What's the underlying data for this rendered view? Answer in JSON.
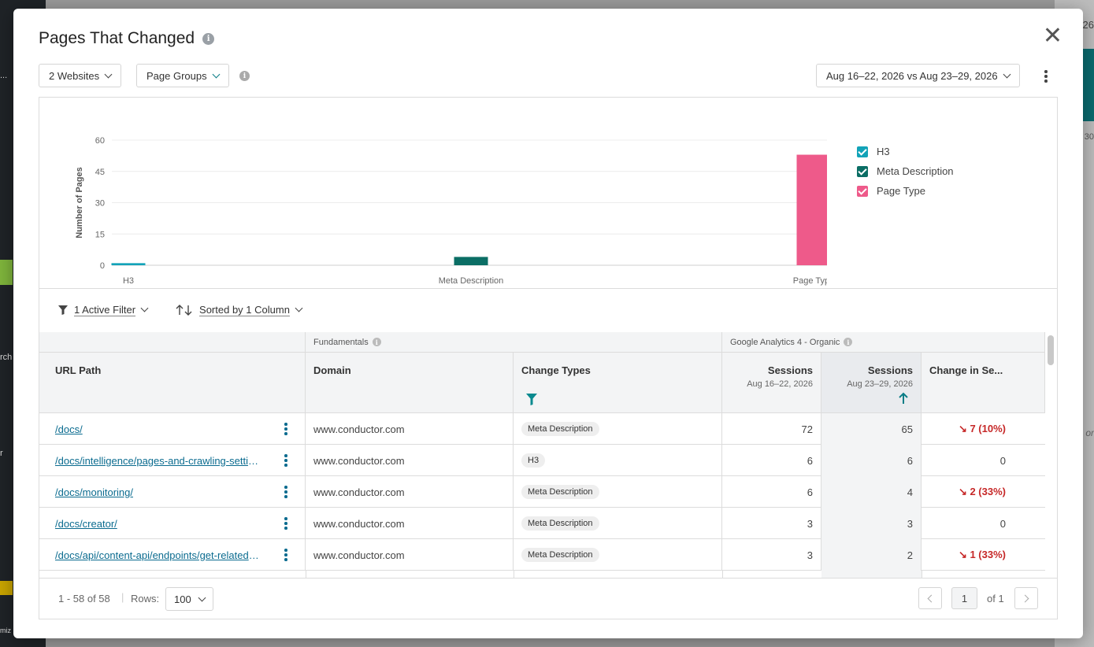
{
  "background": {
    "left_texts": [
      "...",
      "rch",
      "r",
      "miz"
    ],
    "right_texts": [
      "26",
      "30",
      "or"
    ]
  },
  "modal": {
    "title": "Pages That Changed",
    "websites_dropdown": "2 Websites",
    "page_groups_dropdown": "Page Groups",
    "date_range": "Aug 16–22, 2026 vs Aug 23–29, 2026"
  },
  "chart_data": {
    "type": "bar",
    "categories": [
      "H3",
      "Meta Description",
      "Page Type"
    ],
    "values": [
      1,
      4,
      53
    ],
    "colors": [
      "#12a3b8",
      "#0b6e65",
      "#ee5a8a"
    ],
    "ylabel": "Number of Pages",
    "ylim": [
      0,
      60
    ],
    "yticks": [
      0,
      15,
      30,
      45,
      60
    ],
    "grid": true,
    "legend": {
      "placement": "right",
      "entries": [
        "H3",
        "Meta Description",
        "Page Type"
      ]
    }
  },
  "toolbar": {
    "filter_label": "1 Active Filter",
    "sort_label": "Sorted by 1 Column"
  },
  "table": {
    "groups": {
      "fundamentals": "Fundamentals",
      "ga4": "Google Analytics 4 - Organic"
    },
    "columns": {
      "url": "URL Path",
      "domain": "Domain",
      "change_types": "Change Types",
      "sessions_prev": "Sessions",
      "sessions_prev_sub": "Aug 16–22, 2026",
      "sessions_cur": "Sessions",
      "sessions_cur_sub": "Aug 23–29, 2026",
      "change": "Change in Se..."
    },
    "rows": [
      {
        "url": "/docs/",
        "domain": "www.conductor.com",
        "change_type": "Meta Description",
        "sessions_prev": "72",
        "sessions_cur": "65",
        "change": "7 (10%)",
        "negative": true
      },
      {
        "url": "/docs/intelligence/pages-and-crawling-settings/",
        "domain": "www.conductor.com",
        "change_type": "H3",
        "sessions_prev": "6",
        "sessions_cur": "6",
        "change": "0",
        "negative": false
      },
      {
        "url": "/docs/monitoring/",
        "domain": "www.conductor.com",
        "change_type": "Meta Description",
        "sessions_prev": "6",
        "sessions_cur": "4",
        "change": "2 (33%)",
        "negative": true
      },
      {
        "url": "/docs/creator/",
        "domain": "www.conductor.com",
        "change_type": "Meta Description",
        "sessions_prev": "3",
        "sessions_cur": "3",
        "change": "0",
        "negative": false
      },
      {
        "url": "/docs/api/content-api/endpoints/get-related-content/",
        "domain": "www.conductor.com",
        "change_type": "Meta Description",
        "sessions_prev": "3",
        "sessions_cur": "2",
        "change": "1 (33%)",
        "negative": true
      }
    ]
  },
  "footer": {
    "range": "1 - 58 of 58",
    "rows_label": "Rows:",
    "rows_value": "100",
    "page": "1",
    "of_pages": "of 1"
  }
}
